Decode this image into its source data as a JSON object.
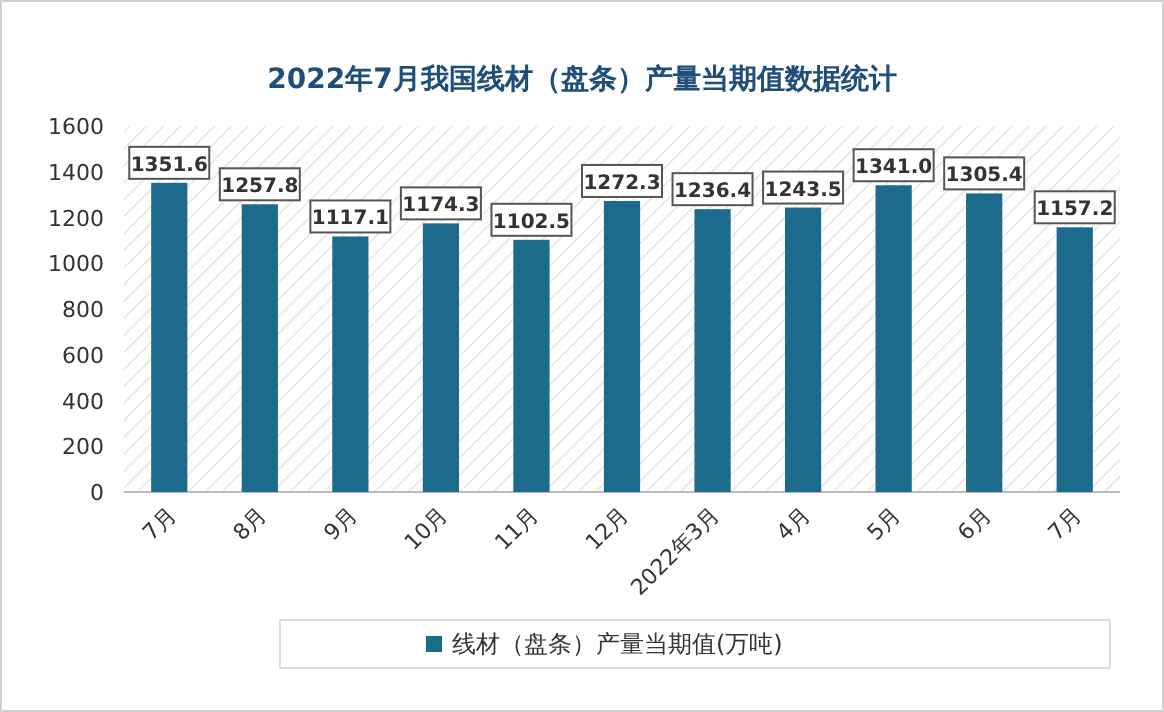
{
  "chart_data": {
    "type": "bar",
    "title": "2022年7月我国线材（盘条）产量当期值数据统计",
    "categories": [
      "7月",
      "8月",
      "9月",
      "10月",
      "11月",
      "12月",
      "2022年3月",
      "4月",
      "5月",
      "6月",
      "7月"
    ],
    "series": [
      {
        "name": "线材（盘条）产量当期值(万吨)",
        "color": "#1c6b8c",
        "values": [
          1351.6,
          1257.8,
          1117.1,
          1174.3,
          1102.5,
          1272.3,
          1236.4,
          1243.5,
          1341.0,
          1305.4,
          1157.2
        ],
        "value_labels": [
          "1351.6",
          "1257.8",
          "1117.1",
          "1174.3",
          "1102.5",
          "1272.3",
          "1236.4",
          "1243.5",
          "1341.0",
          "1305.4",
          "1157.2"
        ]
      }
    ],
    "ylim": [
      0,
      1600
    ],
    "yticks": [
      0,
      200,
      400,
      600,
      800,
      1000,
      1200,
      1400,
      1600
    ],
    "legend": "bottom",
    "grid": false
  }
}
